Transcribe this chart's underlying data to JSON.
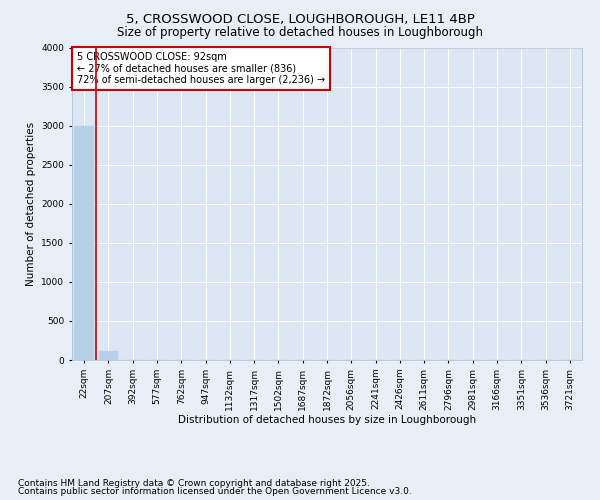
{
  "title1": "5, CROSSWOOD CLOSE, LOUGHBOROUGH, LE11 4BP",
  "title2": "Size of property relative to detached houses in Loughborough",
  "xlabel": "Distribution of detached houses by size in Loughborough",
  "ylabel": "Number of detached properties",
  "categories": [
    "22sqm",
    "207sqm",
    "392sqm",
    "577sqm",
    "762sqm",
    "947sqm",
    "1132sqm",
    "1317sqm",
    "1502sqm",
    "1687sqm",
    "1872sqm",
    "2056sqm",
    "2241sqm",
    "2426sqm",
    "2611sqm",
    "2796sqm",
    "2981sqm",
    "3166sqm",
    "3351sqm",
    "3536sqm",
    "3721sqm"
  ],
  "values": [
    3000,
    110,
    0,
    0,
    0,
    0,
    0,
    0,
    0,
    0,
    0,
    0,
    0,
    0,
    0,
    0,
    0,
    0,
    0,
    0,
    0
  ],
  "bar_color": "#b8cfe8",
  "bar_edge_color": "#b8cfe8",
  "ylim": [
    0,
    4000
  ],
  "yticks": [
    0,
    500,
    1000,
    1500,
    2000,
    2500,
    3000,
    3500,
    4000
  ],
  "property_line_color": "#cc0000",
  "annotation_text": "5 CROSSWOOD CLOSE: 92sqm\n← 27% of detached houses are smaller (836)\n72% of semi-detached houses are larger (2,236) →",
  "annotation_box_color": "#cc0000",
  "annotation_text_color": "#000000",
  "bg_color": "#e8eef8",
  "plot_bg_color": "#dce6f5",
  "grid_color": "#ffffff",
  "footer_line1": "Contains HM Land Registry data © Crown copyright and database right 2025.",
  "footer_line2": "Contains public sector information licensed under the Open Government Licence v3.0.",
  "title_fontsize": 9.5,
  "subtitle_fontsize": 8.5,
  "axis_label_fontsize": 7.5,
  "tick_fontsize": 6.5,
  "annotation_fontsize": 7,
  "footer_fontsize": 6.5
}
